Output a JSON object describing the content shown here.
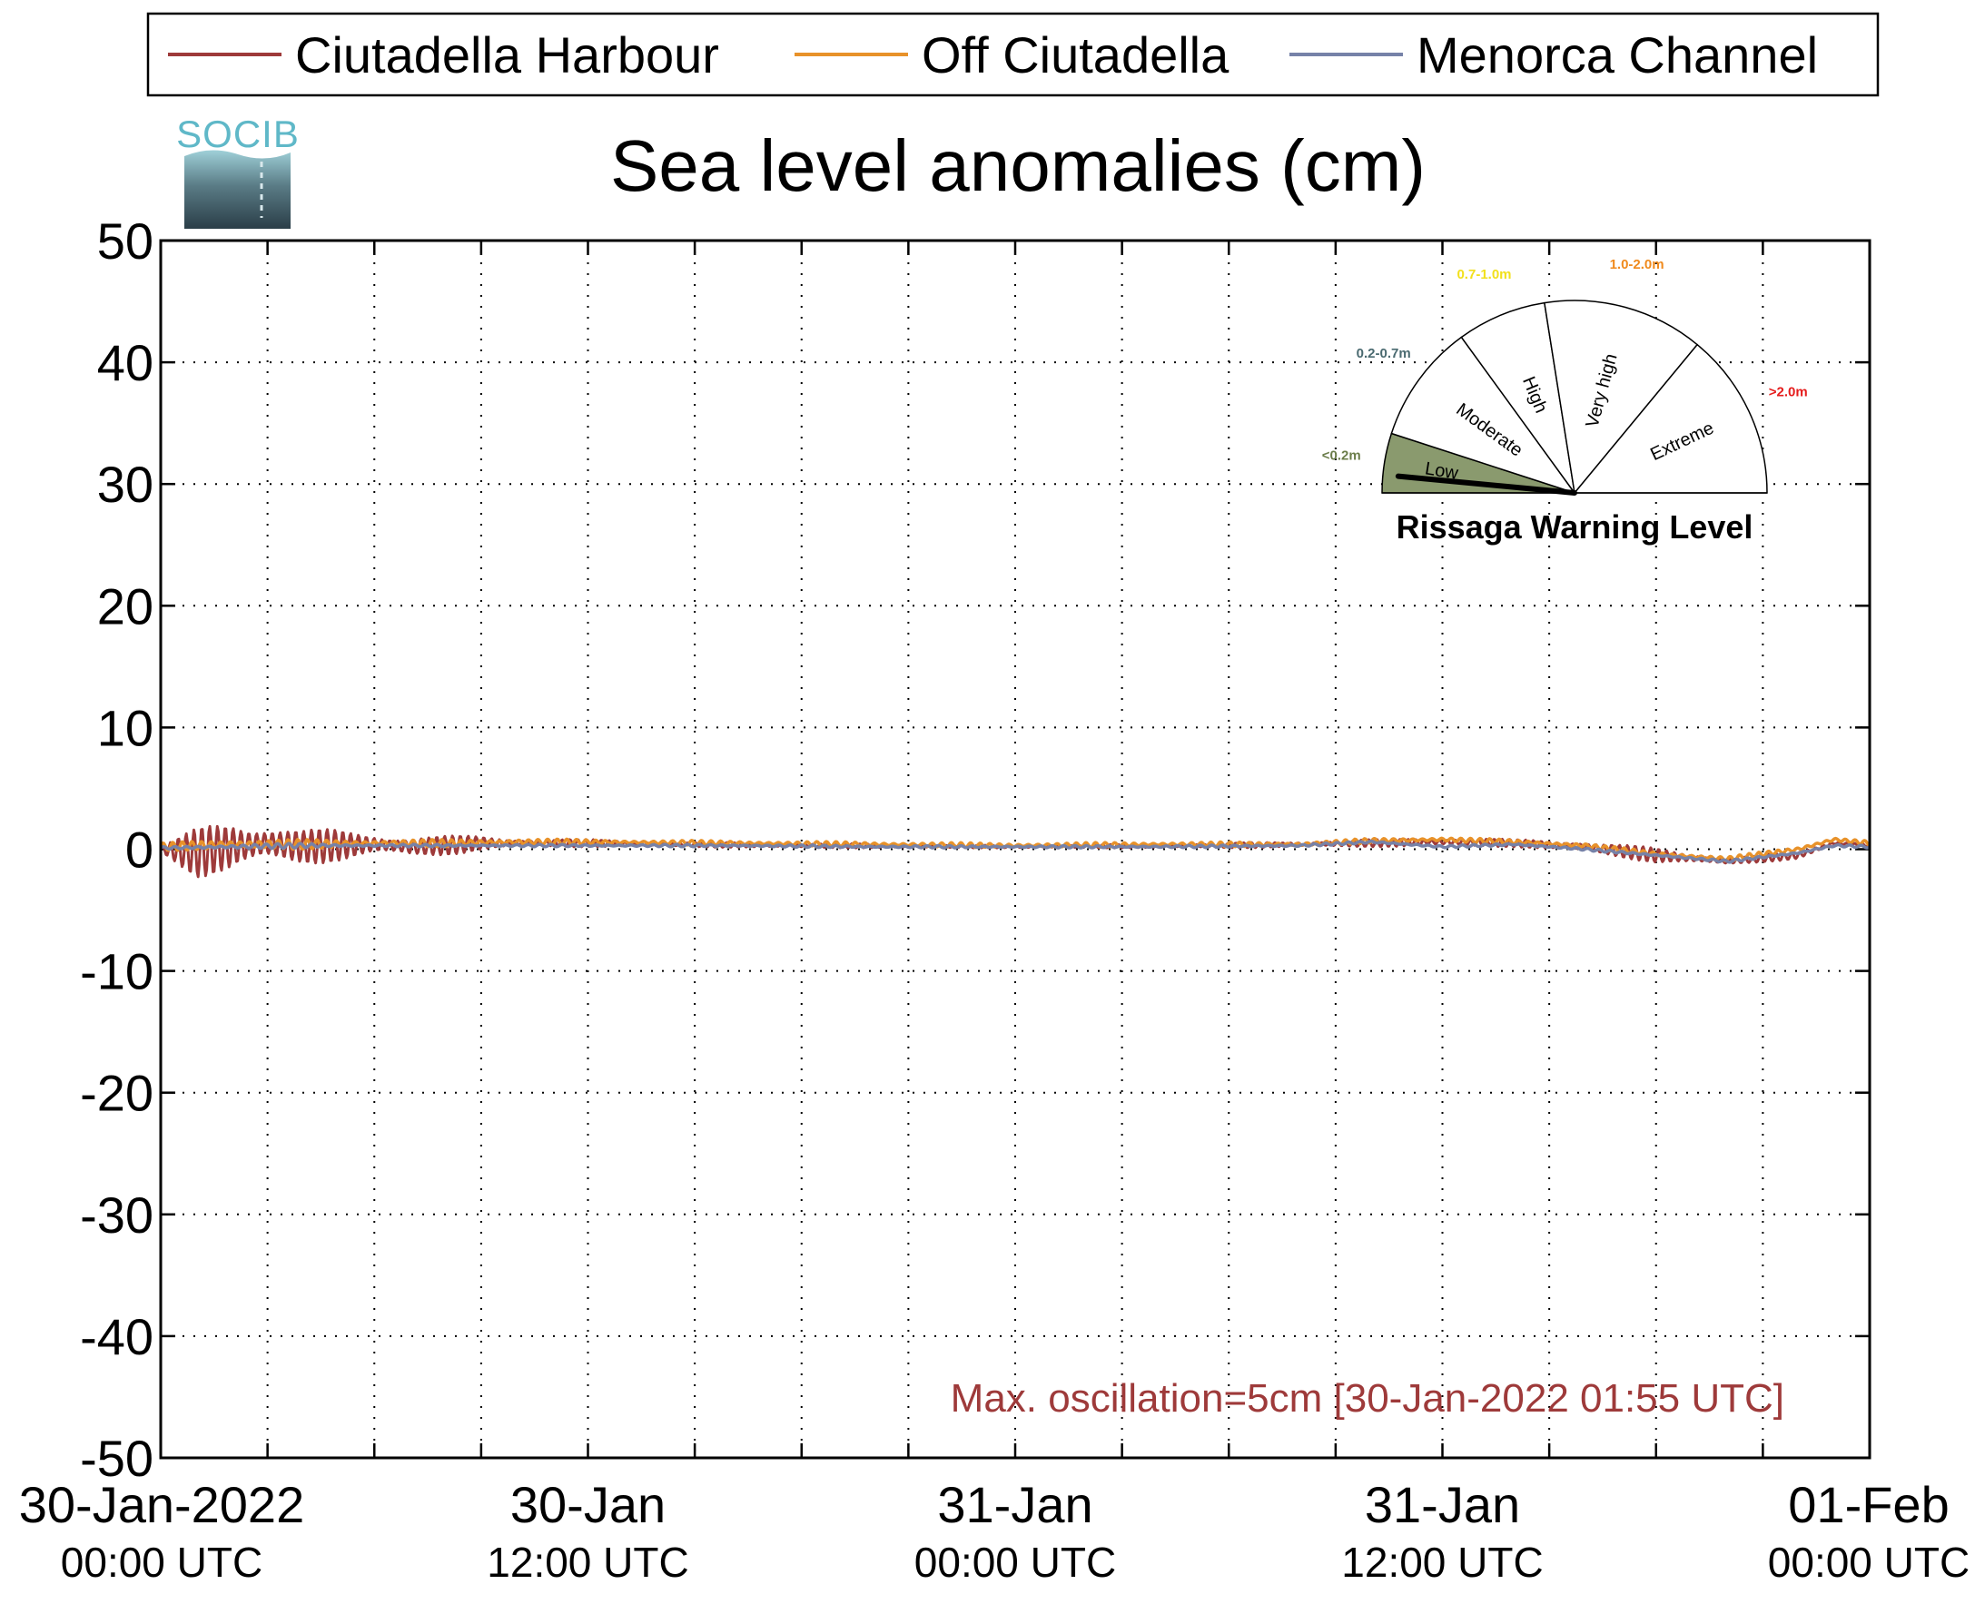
{
  "logo": {
    "text": "SOCIB"
  },
  "legend": {
    "items": [
      {
        "label": "Ciutadella Harbour",
        "color": "#9e3a3a"
      },
      {
        "label": "Off Ciutadella",
        "color": "#e8922a"
      },
      {
        "label": "Menorca Channel",
        "color": "#7682a8"
      }
    ]
  },
  "chart_data": {
    "type": "line",
    "title": "Sea level anomalies (cm)",
    "xlabel": "",
    "ylabel": "",
    "ylim": [
      -50,
      50
    ],
    "xlim": [
      "2022-01-30 00:00",
      "2022-02-01 00:00"
    ],
    "yticks": [
      50,
      40,
      30,
      20,
      10,
      0,
      -10,
      -20,
      -30,
      -40,
      -50
    ],
    "xticks": [
      {
        "line1": "30-Jan-2022",
        "line2": "00:00 UTC",
        "hours": 0
      },
      {
        "line1": "30-Jan",
        "line2": "12:00 UTC",
        "hours": 12
      },
      {
        "line1": "31-Jan",
        "line2": "00:00 UTC",
        "hours": 24
      },
      {
        "line1": "31-Jan",
        "line2": "12:00 UTC",
        "hours": 36
      },
      {
        "line1": "01-Feb",
        "line2": "00:00 UTC",
        "hours": 48
      }
    ],
    "grid": true,
    "legend_position": "top",
    "annotation": "Max. oscillation=5cm [30-Jan-2022 01:55 UTC]",
    "annotation_color": "#9e3a3a",
    "series": [
      {
        "name": "Ciutadella Harbour",
        "color": "#9e3a3a",
        "x_hours": [
          0,
          1,
          2,
          3,
          4,
          5,
          6,
          7,
          8,
          9,
          10,
          12,
          14,
          18,
          24,
          30,
          34,
          36,
          38,
          40,
          42,
          44,
          46,
          47,
          48
        ],
        "y_mean": [
          0,
          -0.3,
          0.2,
          0.5,
          0.2,
          0.3,
          0.4,
          0.2,
          0.3,
          0.5,
          0.5,
          0.5,
          0.4,
          0.3,
          0.2,
          0.3,
          0.5,
          0.6,
          0.5,
          0.2,
          -0.5,
          -1.0,
          -0.5,
          0.5,
          0.3
        ],
        "y_oscillation_amplitude": [
          0.3,
          2.0,
          2.5,
          2.0,
          1.5,
          1.3,
          1.0,
          1.0,
          0.8,
          0.6,
          0.4,
          0.3,
          0.2,
          0.2,
          0.1,
          0.2,
          0.3,
          0.4,
          0.3,
          0.5,
          0.6,
          0.3,
          0.3,
          0.2,
          0.2
        ]
      },
      {
        "name": "Off Ciutadella",
        "color": "#e8922a",
        "x_hours": [
          0,
          2,
          4,
          6,
          8,
          10,
          12,
          16,
          20,
          24,
          28,
          32,
          34,
          36,
          38,
          40,
          42,
          44,
          46,
          47,
          48
        ],
        "y_mean": [
          0.2,
          0.4,
          0.4,
          0.5,
          0.5,
          0.6,
          0.6,
          0.5,
          0.4,
          0.3,
          0.4,
          0.4,
          0.7,
          0.8,
          0.6,
          0.3,
          -0.4,
          -0.8,
          0.0,
          0.8,
          0.5
        ],
        "y_oscillation_amplitude": [
          0.3,
          0.5,
          0.4,
          0.3,
          0.3,
          0.3,
          0.2,
          0.2,
          0.2,
          0.2,
          0.2,
          0.2,
          0.2,
          0.2,
          0.2,
          0.2,
          0.2,
          0.2,
          0.2,
          0.2,
          0.2
        ]
      },
      {
        "name": "Menorca Channel",
        "color": "#7682a8",
        "x_hours": [
          0,
          2,
          4,
          6,
          8,
          10,
          12,
          16,
          20,
          24,
          28,
          32,
          34,
          36,
          38,
          40,
          42,
          44,
          46,
          47,
          48
        ],
        "y_mean": [
          0.1,
          0.2,
          0.3,
          0.3,
          0.3,
          0.3,
          0.3,
          0.3,
          0.2,
          0.2,
          0.2,
          0.3,
          0.6,
          0.2,
          0.4,
          0.0,
          -0.5,
          -1.0,
          -0.3,
          0.3,
          0.2
        ],
        "y_oscillation_amplitude": [
          0.1,
          0.2,
          0.2,
          0.1,
          0.1,
          0.1,
          0.1,
          0.1,
          0.1,
          0.1,
          0.1,
          0.1,
          0.1,
          0.1,
          0.1,
          0.1,
          0.1,
          0.1,
          0.1,
          0.1,
          0.1
        ]
      }
    ]
  },
  "gauge": {
    "title": "Rissaga Warning Level",
    "current_level": "Low",
    "current_value_fraction": 0.03,
    "sectors": [
      {
        "label": "Low",
        "range": "<0.2m",
        "range_color": "#6b7d4a",
        "fill": "#8a9a6e"
      },
      {
        "label": "Moderate",
        "range": "0.2-0.7m",
        "range_color": "#4a6a70",
        "fill": "#ffffff"
      },
      {
        "label": "High",
        "range": "0.7-1.0m",
        "range_color": "#f2e01c",
        "fill": "#ffffff"
      },
      {
        "label": "Very high",
        "range": "1.0-2.0m",
        "range_color": "#f08a1c",
        "fill": "#ffffff"
      },
      {
        "label": "Extreme",
        "range": ">2.0m",
        "range_color": "#e51c1c",
        "fill": "#ffffff"
      }
    ]
  }
}
